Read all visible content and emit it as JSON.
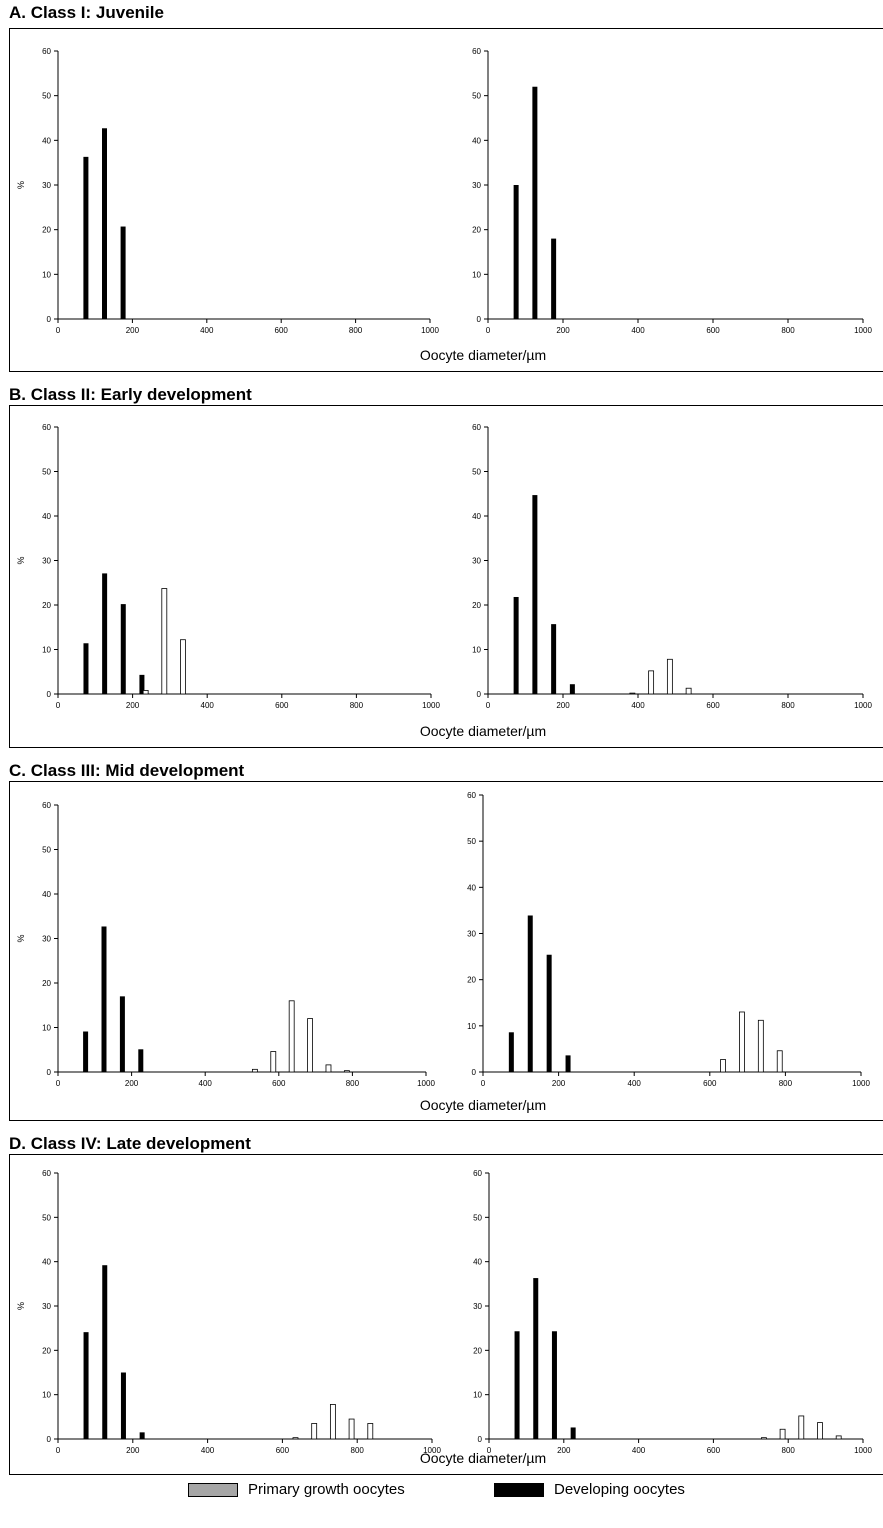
{
  "legend": {
    "primary_label": "Primary growth oocytes",
    "developing_label": "Developing oocytes",
    "primary_color": "#a6a6a6",
    "developing_color": "#000000"
  },
  "chart_data": [
    {
      "panel": "A. Class I: Juvenile",
      "xlabel": "Oocyte diameter/µm",
      "type": "bar",
      "xlim": [
        0,
        1000
      ],
      "ylim": [
        0,
        60
      ],
      "charts": [
        {
          "ylabel": "%",
          "series": [
            {
              "name": "Developing oocytes",
              "x": [
                75,
                125,
                175
              ],
              "values": [
                36.3,
                42.7,
                20.7
              ]
            },
            {
              "name": "Primary growth oocytes",
              "x": [],
              "values": []
            }
          ]
        },
        {
          "ylabel": "",
          "series": [
            {
              "name": "Developing oocytes",
              "x": [
                75,
                125,
                175
              ],
              "values": [
                30,
                52,
                18
              ]
            },
            {
              "name": "Primary growth oocytes",
              "x": [],
              "values": []
            }
          ]
        }
      ]
    },
    {
      "panel": "B. Class II: Early development",
      "xlabel": "Oocyte diameter/µm",
      "type": "bar",
      "xlim": [
        0,
        1000
      ],
      "ylim": [
        0,
        60
      ],
      "charts": [
        {
          "ylabel": "%",
          "series": [
            {
              "name": "Developing oocytes",
              "x": [
                75,
                125,
                175,
                225
              ],
              "values": [
                11.4,
                27.1,
                20.2,
                4.3
              ]
            },
            {
              "name": "Primary growth oocytes",
              "x": [
                235,
                285,
                335
              ],
              "values": [
                0.8,
                23.7,
                12.2
              ]
            }
          ]
        },
        {
          "ylabel": "",
          "series": [
            {
              "name": "Developing oocytes",
              "x": [
                75,
                125,
                175,
                225
              ],
              "values": [
                21.8,
                44.7,
                15.7,
                2.2
              ]
            },
            {
              "name": "Primary growth oocytes",
              "x": [
                385,
                435,
                485,
                535
              ],
              "values": [
                0.2,
                5.2,
                7.8,
                1.3
              ]
            }
          ]
        }
      ]
    },
    {
      "panel": "C. Class III: Mid development",
      "xlabel": "Oocyte diameter/µm",
      "type": "bar",
      "xlim": [
        0,
        1000
      ],
      "ylim": [
        0,
        60
      ],
      "charts": [
        {
          "ylabel": "%",
          "series": [
            {
              "name": "Developing oocytes",
              "x": [
                75,
                125,
                175,
                225
              ],
              "values": [
                9.1,
                32.7,
                17,
                5.1
              ]
            },
            {
              "name": "Primary growth oocytes",
              "x": [
                535,
                585,
                635,
                685,
                735,
                785
              ],
              "values": [
                0.6,
                4.6,
                16,
                12,
                1.6,
                0.3
              ]
            }
          ]
        },
        {
          "ylabel": "",
          "series": [
            {
              "name": "Developing oocytes",
              "x": [
                75,
                125,
                175,
                225
              ],
              "values": [
                8.6,
                33.9,
                25.4,
                3.6
              ]
            },
            {
              "name": "Primary growth oocytes",
              "x": [
                635,
                685,
                735,
                785
              ],
              "values": [
                2.7,
                13,
                11.2,
                4.6
              ]
            }
          ]
        }
      ]
    },
    {
      "panel": "D. Class IV: Late development",
      "xlabel": "Oocyte diameter/µm",
      "type": "bar",
      "xlim": [
        0,
        1000
      ],
      "ylim": [
        0,
        60
      ],
      "charts": [
        {
          "ylabel": "%",
          "series": [
            {
              "name": "Developing oocytes",
              "x": [
                75,
                125,
                175,
                225
              ],
              "values": [
                24.1,
                39.2,
                15,
                1.5
              ]
            },
            {
              "name": "Primary growth oocytes",
              "x": [
                635,
                685,
                735,
                785,
                835
              ],
              "values": [
                0.3,
                3.5,
                7.8,
                4.5,
                3.5
              ]
            }
          ]
        },
        {
          "ylabel": "",
          "series": [
            {
              "name": "Developing oocytes",
              "x": [
                75,
                125,
                175,
                225
              ],
              "values": [
                24.3,
                36.3,
                24.3,
                2.6
              ]
            },
            {
              "name": "Primary growth oocytes",
              "x": [
                735,
                785,
                835,
                885,
                935
              ],
              "values": [
                0.3,
                2.2,
                5.2,
                3.7,
                0.7
              ]
            }
          ]
        }
      ]
    }
  ]
}
